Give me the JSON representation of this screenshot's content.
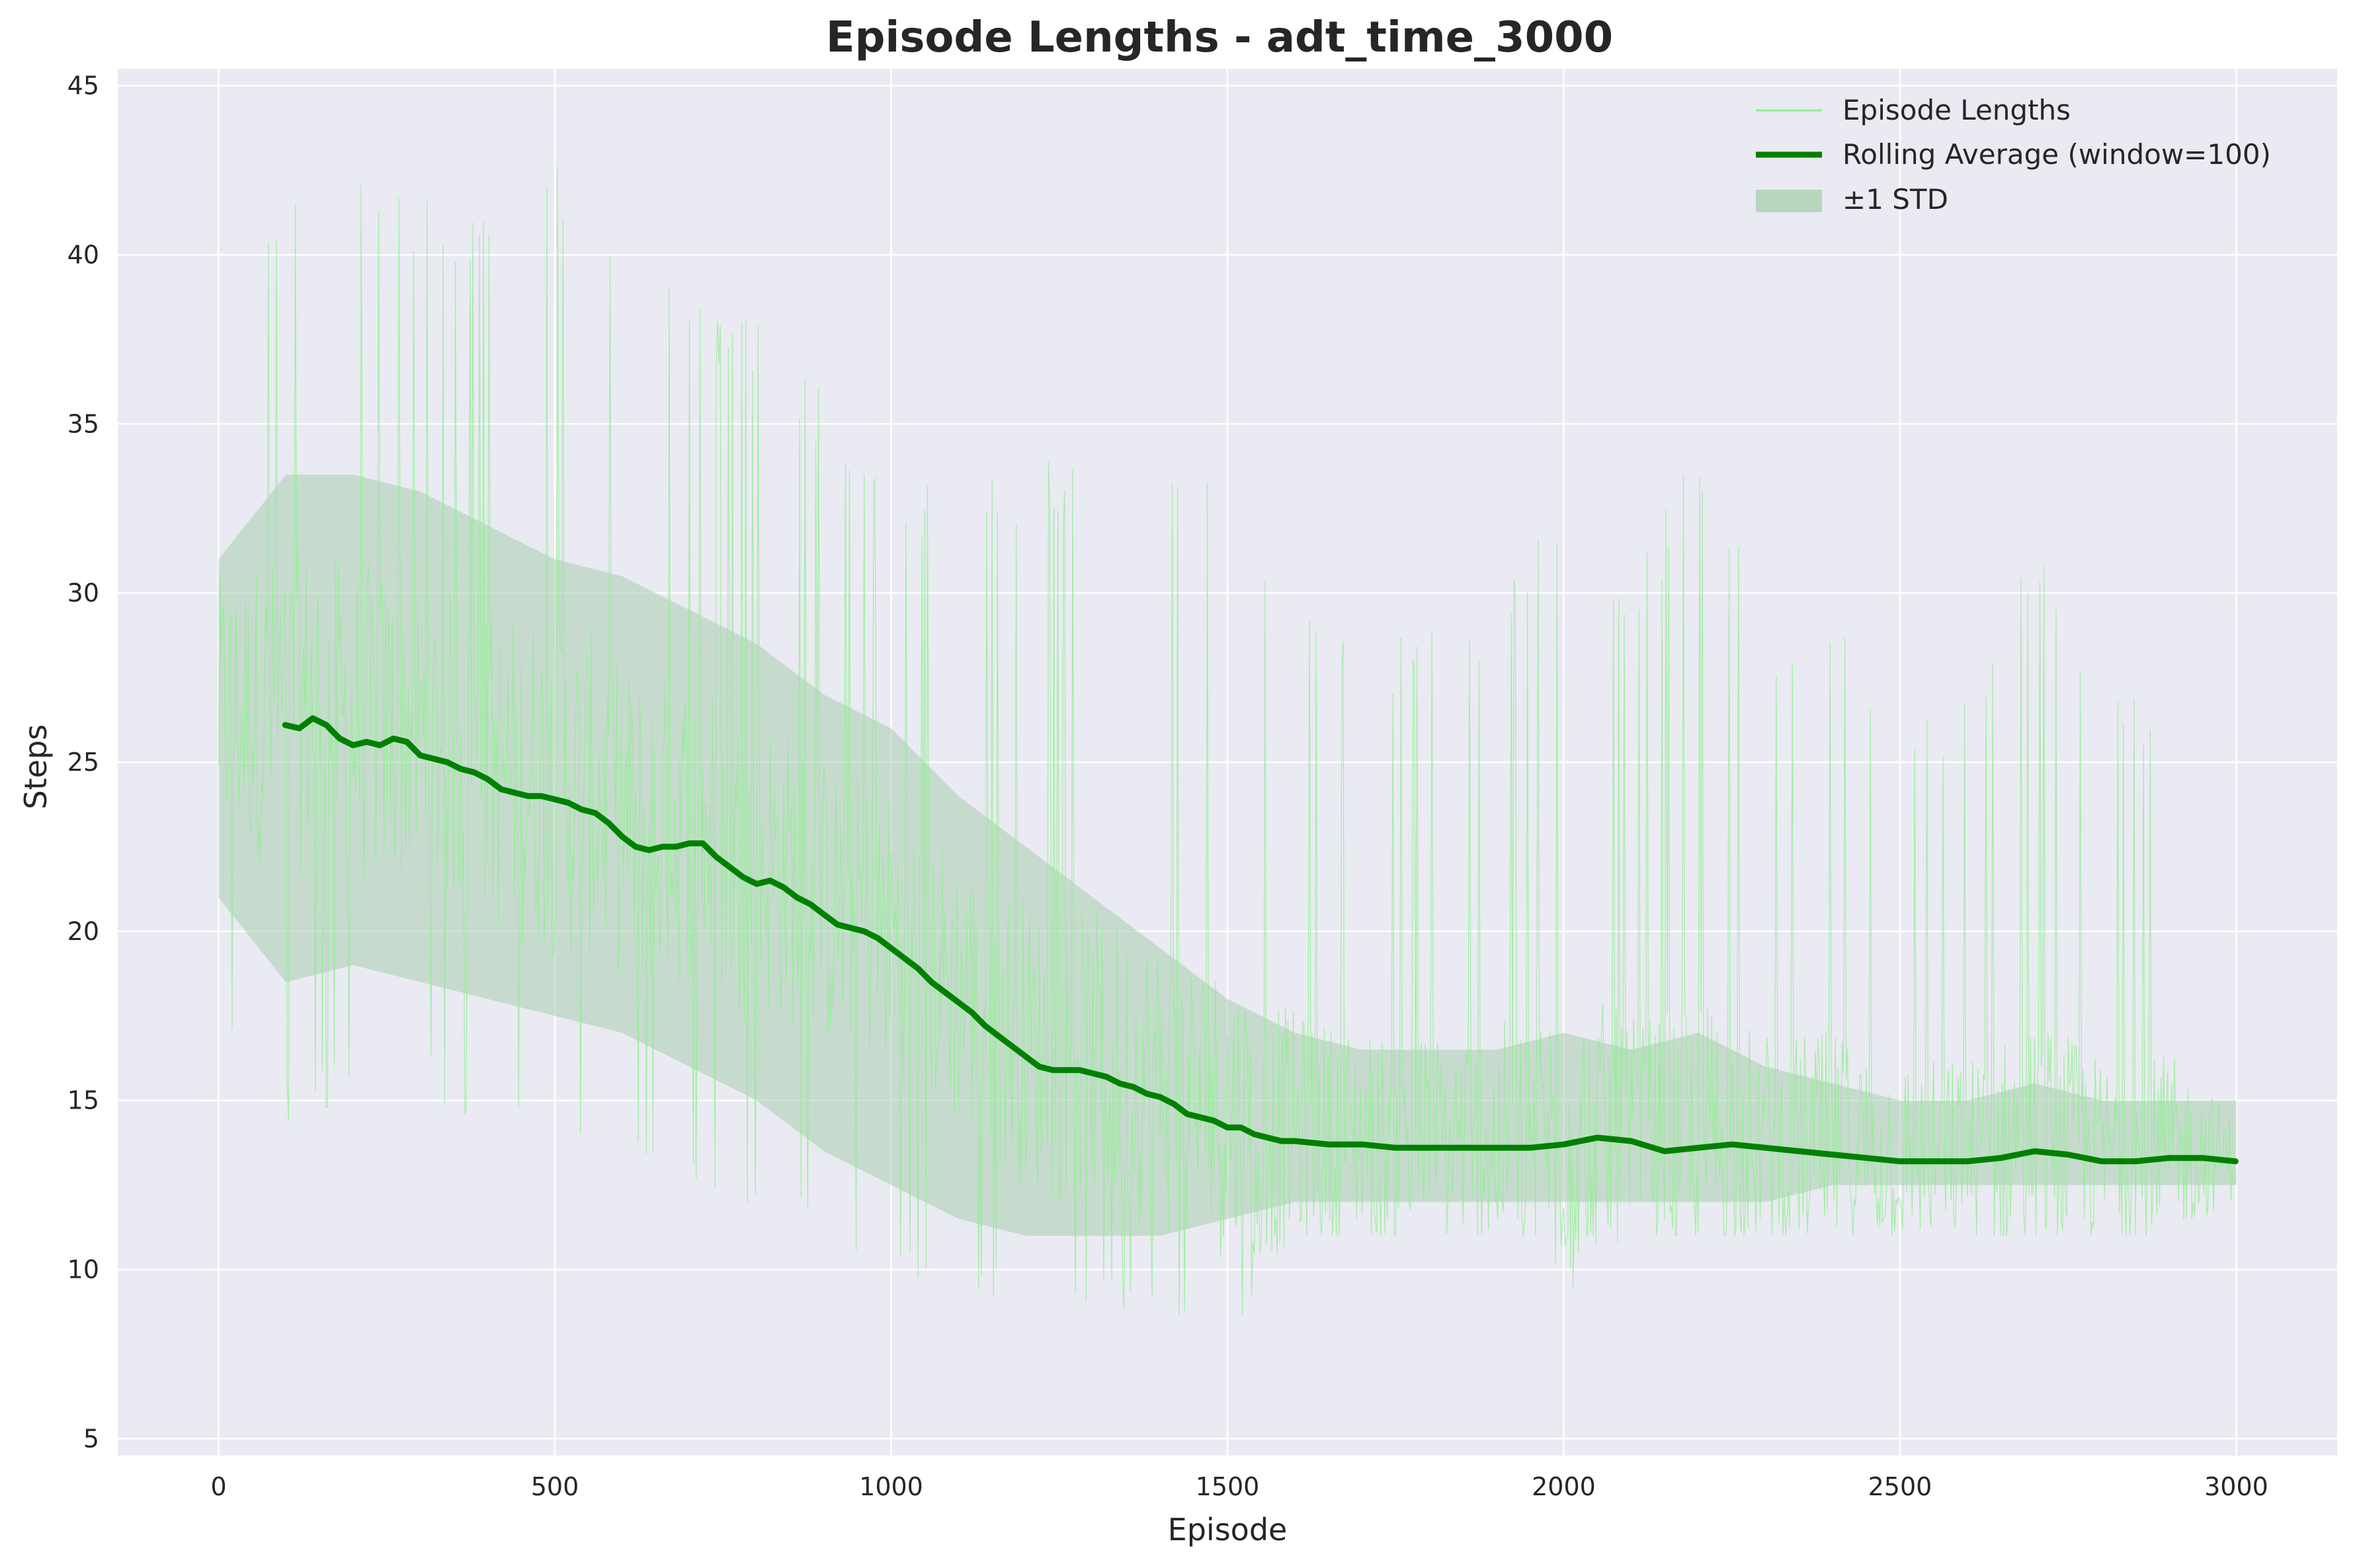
{
  "chart_data": {
    "type": "line",
    "title": "Episode Lengths - adt_time_3000",
    "xlabel": "Episode",
    "ylabel": "Steps",
    "xlim": [
      -150,
      3150
    ],
    "ylim": [
      4.5,
      45.5
    ],
    "xticks": [
      "0",
      "500",
      "1000",
      "1500",
      "2000",
      "2500",
      "3000"
    ],
    "yticks": [
      "5",
      "10",
      "15",
      "20",
      "25",
      "30",
      "35",
      "40",
      "45"
    ],
    "grid": true,
    "legend_position": "top-right",
    "legend": [
      {
        "label": "Episode Lengths",
        "kind": "thin-line",
        "color": "#90ee90"
      },
      {
        "label": "Rolling Average (window=100)",
        "kind": "thick-line",
        "color": "#008000"
      },
      {
        "label": "±1 STD",
        "kind": "patch",
        "color": "#b9d6bf"
      }
    ],
    "colors": {
      "raw": "#90ee90",
      "rolling": "#008000",
      "std": "#a8cdb0",
      "background": "#eaeaf2",
      "grid": "#ffffff"
    },
    "series": [
      {
        "name": "Episode Lengths",
        "approx_envelope": {
          "x": [
            0,
            100,
            200,
            300,
            400,
            500,
            600,
            700,
            800,
            900,
            1000,
            1100,
            1200,
            1300,
            1400,
            1500,
            1600,
            1700,
            1800,
            1900,
            2000,
            2100,
            2200,
            2300,
            2400,
            2500,
            2600,
            2700,
            2800,
            2900,
            3000
          ],
          "low": [
            17,
            14,
            15,
            15,
            14,
            13,
            13,
            12,
            11,
            11,
            10,
            9,
            9,
            9,
            8,
            8,
            11,
            11,
            11,
            11,
            9,
            11,
            11,
            11,
            11,
            11,
            11,
            11,
            11,
            11,
            11
          ],
          "high": [
            40,
            42,
            43,
            42,
            41,
            43,
            40,
            39,
            38,
            36,
            34,
            33,
            34,
            34,
            34,
            33,
            31,
            29,
            29,
            30,
            33,
            30,
            35,
            29,
            30,
            27,
            27,
            32,
            27,
            27,
            18
          ]
        }
      },
      {
        "name": "Rolling Average (window=100)",
        "x": [
          99,
          120,
          140,
          160,
          180,
          200,
          220,
          240,
          260,
          280,
          300,
          320,
          340,
          360,
          380,
          400,
          420,
          440,
          460,
          480,
          500,
          520,
          540,
          560,
          580,
          600,
          620,
          640,
          660,
          680,
          700,
          720,
          740,
          760,
          780,
          800,
          820,
          840,
          860,
          880,
          900,
          920,
          940,
          960,
          980,
          1000,
          1020,
          1040,
          1060,
          1080,
          1100,
          1120,
          1140,
          1160,
          1180,
          1200,
          1220,
          1240,
          1260,
          1280,
          1300,
          1320,
          1340,
          1360,
          1380,
          1400,
          1420,
          1440,
          1460,
          1480,
          1500,
          1520,
          1540,
          1560,
          1580,
          1600,
          1650,
          1700,
          1750,
          1800,
          1850,
          1900,
          1950,
          2000,
          2050,
          2100,
          2150,
          2200,
          2250,
          2300,
          2350,
          2400,
          2450,
          2500,
          2550,
          2600,
          2650,
          2700,
          2750,
          2800,
          2850,
          2900,
          2950,
          2999
        ],
        "y": [
          26.1,
          26.0,
          26.3,
          26.1,
          25.7,
          25.5,
          25.6,
          25.5,
          25.7,
          25.6,
          25.2,
          25.1,
          25.0,
          24.8,
          24.7,
          24.5,
          24.2,
          24.1,
          24.0,
          24.0,
          23.9,
          23.8,
          23.6,
          23.5,
          23.2,
          22.8,
          22.5,
          22.4,
          22.5,
          22.5,
          22.6,
          22.6,
          22.2,
          21.9,
          21.6,
          21.4,
          21.5,
          21.3,
          21.0,
          20.8,
          20.5,
          20.2,
          20.1,
          20.0,
          19.8,
          19.5,
          19.2,
          18.9,
          18.5,
          18.2,
          17.9,
          17.6,
          17.2,
          16.9,
          16.6,
          16.3,
          16.0,
          15.9,
          15.9,
          15.9,
          15.8,
          15.7,
          15.5,
          15.4,
          15.2,
          15.1,
          14.9,
          14.6,
          14.5,
          14.4,
          14.2,
          14.2,
          14.0,
          13.9,
          13.8,
          13.8,
          13.7,
          13.7,
          13.6,
          13.6,
          13.6,
          13.6,
          13.6,
          13.7,
          13.9,
          13.8,
          13.5,
          13.6,
          13.7,
          13.6,
          13.5,
          13.4,
          13.3,
          13.2,
          13.2,
          13.2,
          13.3,
          13.5,
          13.4,
          13.2,
          13.2,
          13.3,
          13.3,
          13.2
        ]
      },
      {
        "name": "±1 STD",
        "x": [
          0,
          100,
          200,
          300,
          400,
          500,
          600,
          700,
          800,
          900,
          1000,
          1100,
          1200,
          1300,
          1400,
          1500,
          1600,
          1700,
          1800,
          1900,
          2000,
          2100,
          2200,
          2300,
          2400,
          2500,
          2600,
          2700,
          2800,
          2900,
          3000
        ],
        "lower": [
          21.0,
          18.5,
          19.0,
          18.5,
          18.0,
          17.5,
          17.0,
          16.0,
          15.0,
          13.5,
          12.5,
          11.5,
          11.0,
          11.0,
          11.0,
          11.5,
          12.0,
          12.0,
          12.0,
          12.0,
          12.0,
          12.0,
          12.0,
          12.0,
          12.5,
          12.5,
          12.5,
          12.5,
          12.5,
          12.5,
          12.5
        ],
        "upper": [
          31.0,
          33.5,
          33.5,
          33.0,
          32.0,
          31.0,
          30.5,
          29.5,
          28.5,
          27.0,
          26.0,
          24.0,
          22.5,
          21.0,
          19.5,
          18.0,
          17.0,
          16.5,
          16.5,
          16.5,
          17.0,
          16.5,
          17.0,
          16.0,
          15.5,
          15.0,
          15.0,
          15.5,
          15.0,
          15.0,
          15.0
        ]
      }
    ]
  }
}
